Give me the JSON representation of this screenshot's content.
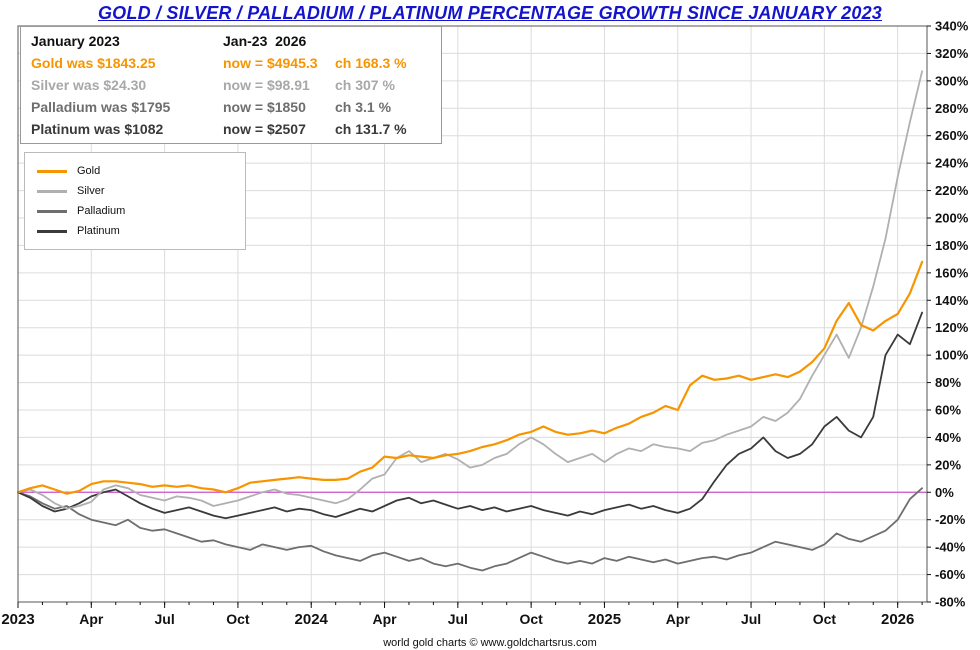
{
  "title": "GOLD / SILVER / PALLADIUM / PLATINUM PERCENTAGE GROWTH SINCE JANUARY 2023",
  "footer": "world gold charts © www.goldchartsrus.com",
  "info_box": {
    "header_left": "January 2023",
    "header_right": "Jan-23  2026",
    "rows": [
      {
        "was": "Gold was $1843.25",
        "now": "now = $4945.3",
        "change": "ch 168.3 %",
        "color": "#f79500"
      },
      {
        "was": "Silver was $24.30",
        "now": "now = $98.91",
        "change": "ch 307 %",
        "color": "#a8a8a8"
      },
      {
        "was": "Palladium was $1795",
        "now": "now = $1850",
        "change": "ch 3.1 %",
        "color": "#6e6e6e"
      },
      {
        "was": "Platinum was $1082",
        "now": "now = $2507",
        "change": "ch 131.7 %",
        "color": "#3a3a3a"
      }
    ]
  },
  "chart_data": {
    "type": "line",
    "title": "GOLD / SILVER / PALLADIUM / PLATINUM PERCENTAGE GROWTH SINCE JANUARY 2023",
    "x_unit": "months since January 2023",
    "xlim": [
      0,
      37.2
    ],
    "ylim": [
      -80,
      340
    ],
    "y_tick_suffix": "%",
    "grid": true,
    "grid_color": "#dcdcdc",
    "zero_line_color": "#cc55cc",
    "legend_position": "upper-left",
    "y_ticks": [
      340,
      320,
      300,
      280,
      260,
      240,
      220,
      200,
      180,
      160,
      140,
      120,
      100,
      80,
      60,
      40,
      20,
      0,
      -20,
      -40,
      -60,
      -80
    ],
    "x_ticks": [
      {
        "x": 0,
        "label": "2023"
      },
      {
        "x": 3,
        "label": "Apr"
      },
      {
        "x": 6,
        "label": "Jul"
      },
      {
        "x": 9,
        "label": "Oct"
      },
      {
        "x": 12,
        "label": "2024"
      },
      {
        "x": 15,
        "label": "Apr"
      },
      {
        "x": 18,
        "label": "Jul"
      },
      {
        "x": 21,
        "label": "Oct"
      },
      {
        "x": 24,
        "label": "2025"
      },
      {
        "x": 27,
        "label": "Apr"
      },
      {
        "x": 30,
        "label": "Jul"
      },
      {
        "x": 33,
        "label": "Oct"
      },
      {
        "x": 36,
        "label": "2026"
      }
    ],
    "series": [
      {
        "name": "Gold",
        "color": "#f79500",
        "x_start": 0,
        "x_step": 0.5,
        "values": [
          0,
          3,
          5,
          2,
          -1,
          1,
          6,
          8,
          8,
          7,
          6,
          4,
          5,
          4,
          5,
          3,
          2,
          0,
          3,
          7,
          8,
          9,
          10,
          11,
          10,
          9,
          9,
          10,
          15,
          18,
          26,
          25,
          27,
          26,
          25,
          27,
          28,
          30,
          33,
          35,
          38,
          42,
          44,
          48,
          44,
          42,
          43,
          45,
          43,
          47,
          50,
          55,
          58,
          63,
          60,
          78,
          85,
          82,
          83,
          85,
          82,
          84,
          86,
          84,
          88,
          95,
          105,
          125,
          138,
          122,
          118,
          125,
          130,
          145,
          168
        ]
      },
      {
        "name": "Silver",
        "color": "#b0b0b0",
        "x_start": 0,
        "x_step": 0.5,
        "values": [
          0,
          2,
          -2,
          -8,
          -12,
          -10,
          -7,
          2,
          5,
          3,
          -2,
          -4,
          -6,
          -3,
          -4,
          -6,
          -10,
          -8,
          -6,
          -3,
          0,
          2,
          -1,
          -2,
          -4,
          -6,
          -8,
          -5,
          2,
          10,
          13,
          25,
          30,
          22,
          25,
          28,
          24,
          18,
          20,
          25,
          28,
          35,
          40,
          35,
          28,
          22,
          25,
          28,
          22,
          28,
          32,
          30,
          35,
          33,
          32,
          30,
          36,
          38,
          42,
          45,
          48,
          55,
          52,
          58,
          68,
          85,
          100,
          115,
          98,
          120,
          150,
          185,
          230,
          270,
          307
        ]
      },
      {
        "name": "Palladium",
        "color": "#6e6e6e",
        "x_start": 0,
        "x_step": 0.5,
        "values": [
          0,
          -3,
          -8,
          -12,
          -10,
          -16,
          -20,
          -22,
          -24,
          -20,
          -26,
          -28,
          -27,
          -30,
          -33,
          -36,
          -35,
          -38,
          -40,
          -42,
          -38,
          -40,
          -42,
          -40,
          -39,
          -43,
          -46,
          -48,
          -50,
          -46,
          -44,
          -47,
          -50,
          -48,
          -52,
          -54,
          -52,
          -55,
          -57,
          -54,
          -52,
          -48,
          -44,
          -47,
          -50,
          -52,
          -50,
          -52,
          -48,
          -50,
          -47,
          -49,
          -51,
          -49,
          -52,
          -50,
          -48,
          -47,
          -49,
          -46,
          -44,
          -40,
          -36,
          -38,
          -40,
          -42,
          -38,
          -30,
          -34,
          -36,
          -32,
          -28,
          -20,
          -5,
          3
        ]
      },
      {
        "name": "Platinum",
        "color": "#3a3a3a",
        "x_start": 0,
        "x_step": 0.5,
        "values": [
          0,
          -4,
          -10,
          -14,
          -12,
          -8,
          -3,
          0,
          2,
          -3,
          -8,
          -12,
          -15,
          -13,
          -11,
          -14,
          -17,
          -19,
          -17,
          -15,
          -13,
          -11,
          -14,
          -12,
          -13,
          -16,
          -18,
          -15,
          -12,
          -14,
          -10,
          -6,
          -4,
          -8,
          -6,
          -9,
          -12,
          -10,
          -13,
          -11,
          -14,
          -12,
          -10,
          -13,
          -15,
          -17,
          -14,
          -16,
          -13,
          -11,
          -9,
          -12,
          -10,
          -13,
          -15,
          -12,
          -5,
          8,
          20,
          28,
          32,
          40,
          30,
          25,
          28,
          35,
          48,
          55,
          45,
          40,
          55,
          100,
          115,
          108,
          131
        ]
      }
    ]
  }
}
